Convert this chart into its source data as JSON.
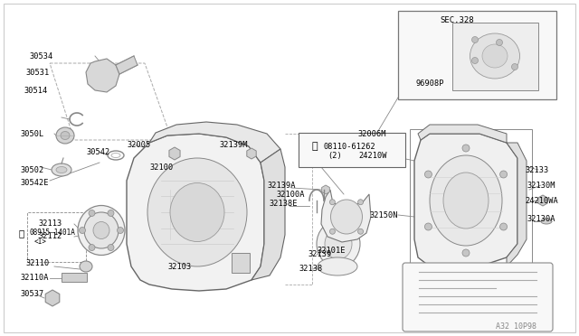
{
  "bg_color": "#ffffff",
  "line_color": "#888888",
  "dark_line_color": "#555555",
  "text_color": "#000000",
  "fig_width": 6.4,
  "fig_height": 3.72,
  "watermark": "A32 10P98",
  "sec_label": "SEC.328",
  "bolt_label": "08110-61262",
  "bolt_qty": "(2)"
}
